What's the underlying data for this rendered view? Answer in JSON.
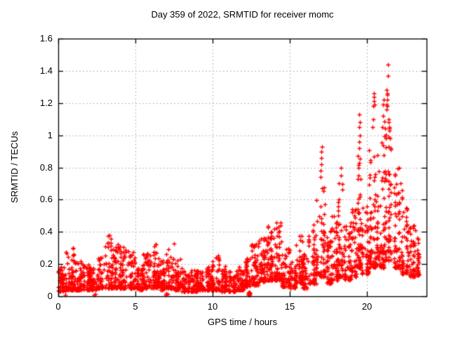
{
  "chart_data": {
    "type": "scatter",
    "title": "Day 359 of 2022, SRMTID for receiver momc",
    "xlabel": "GPS time / hours",
    "ylabel": "SRMTID / TECUs",
    "xlim": [
      0,
      23.86
    ],
    "ylim": [
      0,
      1.6
    ],
    "xtick_values": [
      0,
      5,
      10,
      15,
      20
    ],
    "xtick_labels": [
      "0",
      "5",
      "10",
      "15",
      "20"
    ],
    "ytick_values": [
      0,
      0.2,
      0.4,
      0.6,
      0.8,
      1.0,
      1.2,
      1.4,
      1.6
    ],
    "ytick_labels": [
      "0",
      "0.2",
      "0.4",
      "0.6",
      "0.8",
      "1",
      "1.2",
      "1.4",
      "1.6"
    ],
    "grid": true,
    "grid_color": "#b8b8b8",
    "marker": "plus",
    "marker_color": "#ff0000",
    "border_color": "#000000",
    "seed": 1234567,
    "series_name": "SRMTID",
    "bin_format": [
      "t_start_hours",
      "t_end_hours",
      "count",
      "y_min_TECUs",
      "y_max_TECUs",
      "skew_exponent"
    ],
    "density_bins": [
      [
        0.0,
        0.5,
        55,
        0.03,
        0.2,
        2.0
      ],
      [
        0.5,
        1.0,
        55,
        0.04,
        0.3,
        2.2
      ],
      [
        1.0,
        1.5,
        55,
        0.04,
        0.22,
        2.0
      ],
      [
        1.5,
        2.0,
        50,
        0.04,
        0.2,
        2.0
      ],
      [
        2.0,
        2.5,
        50,
        0.04,
        0.18,
        2.0
      ],
      [
        2.5,
        3.0,
        50,
        0.05,
        0.26,
        2.0
      ],
      [
        3.0,
        3.5,
        55,
        0.05,
        0.38,
        2.2
      ],
      [
        3.5,
        4.0,
        55,
        0.05,
        0.35,
        2.2
      ],
      [
        4.0,
        4.5,
        55,
        0.05,
        0.31,
        2.2
      ],
      [
        4.5,
        5.0,
        50,
        0.05,
        0.28,
        2.2
      ],
      [
        5.0,
        5.5,
        50,
        0.04,
        0.2,
        2.0
      ],
      [
        5.5,
        6.0,
        50,
        0.05,
        0.28,
        2.2
      ],
      [
        6.0,
        6.5,
        55,
        0.05,
        0.33,
        2.2
      ],
      [
        6.5,
        7.0,
        50,
        0.04,
        0.25,
        2.0
      ],
      [
        7.0,
        7.5,
        55,
        0.05,
        0.35,
        2.2
      ],
      [
        7.5,
        8.0,
        50,
        0.04,
        0.24,
        2.0
      ],
      [
        8.0,
        8.5,
        50,
        0.03,
        0.18,
        2.0
      ],
      [
        8.5,
        9.0,
        50,
        0.03,
        0.16,
        2.0
      ],
      [
        9.0,
        9.5,
        50,
        0.04,
        0.16,
        2.0
      ],
      [
        9.5,
        10.0,
        50,
        0.04,
        0.19,
        2.0
      ],
      [
        10.0,
        10.5,
        55,
        0.04,
        0.26,
        2.2
      ],
      [
        10.5,
        11.0,
        50,
        0.03,
        0.2,
        2.0
      ],
      [
        11.0,
        11.5,
        45,
        0.03,
        0.16,
        2.0
      ],
      [
        11.5,
        12.0,
        48,
        0.04,
        0.2,
        2.0
      ],
      [
        12.0,
        12.5,
        52,
        0.06,
        0.24,
        2.0
      ],
      [
        12.5,
        13.0,
        55,
        0.07,
        0.33,
        2.2
      ],
      [
        13.0,
        13.5,
        58,
        0.09,
        0.38,
        2.2
      ],
      [
        13.5,
        14.0,
        60,
        0.1,
        0.44,
        2.2
      ],
      [
        14.0,
        14.5,
        60,
        0.1,
        0.46,
        2.2
      ],
      [
        14.5,
        15.0,
        50,
        0.06,
        0.3,
        2.2
      ],
      [
        15.0,
        15.4,
        38,
        0.05,
        0.22,
        2.0
      ],
      [
        15.4,
        15.8,
        45,
        0.08,
        0.42,
        2.2
      ],
      [
        15.8,
        16.2,
        42,
        0.05,
        0.26,
        2.0
      ],
      [
        16.2,
        16.7,
        50,
        0.08,
        0.46,
        2.2
      ],
      [
        16.7,
        17.3,
        65,
        0.12,
        0.7,
        2.4
      ],
      [
        17.3,
        17.7,
        42,
        0.08,
        0.42,
        2.2
      ],
      [
        17.7,
        18.1,
        46,
        0.1,
        0.52,
        2.2
      ],
      [
        18.1,
        18.45,
        42,
        0.12,
        0.78,
        2.6
      ],
      [
        18.45,
        19.0,
        50,
        0.1,
        0.46,
        2.2
      ],
      [
        19.0,
        19.35,
        42,
        0.12,
        0.56,
        2.2
      ],
      [
        19.35,
        19.65,
        55,
        0.18,
        0.88,
        2.4
      ],
      [
        19.65,
        20.1,
        50,
        0.14,
        0.56,
        2.2
      ],
      [
        20.1,
        20.6,
        65,
        0.18,
        0.95,
        2.4
      ],
      [
        20.6,
        21.1,
        70,
        0.18,
        1.0,
        2.4
      ],
      [
        21.1,
        21.6,
        70,
        0.22,
        1.15,
        2.2
      ],
      [
        21.6,
        22.1,
        55,
        0.18,
        0.8,
        2.4
      ],
      [
        22.1,
        22.6,
        50,
        0.14,
        0.62,
        2.2
      ],
      [
        22.6,
        23.1,
        48,
        0.12,
        0.45,
        2.0
      ],
      [
        23.1,
        23.45,
        32,
        0.13,
        0.42,
        2.0
      ]
    ],
    "outlier_points": [
      [
        0.45,
        0.01
      ],
      [
        2.3,
        0.008
      ],
      [
        2.4,
        0.012
      ],
      [
        6.95,
        0.01
      ],
      [
        7.02,
        0.018
      ],
      [
        7.08,
        0.012
      ],
      [
        12.3,
        0.015
      ],
      [
        12.33,
        0.02
      ],
      [
        12.36,
        0.012
      ],
      [
        12.39,
        0.022
      ],
      [
        12.42,
        0.016
      ],
      [
        12.36,
        0.028
      ],
      [
        12.33,
        0.01
      ],
      [
        12.4,
        0.01
      ],
      [
        17.0,
        0.74
      ],
      [
        17.02,
        0.78
      ],
      [
        17.05,
        0.82
      ],
      [
        17.03,
        0.86
      ],
      [
        17.06,
        0.9
      ],
      [
        17.08,
        0.93
      ],
      [
        18.3,
        0.8
      ],
      [
        18.32,
        0.75
      ],
      [
        19.48,
        0.92
      ],
      [
        19.5,
        0.96
      ],
      [
        19.52,
        1.0
      ],
      [
        19.5,
        1.05
      ],
      [
        19.53,
        1.08
      ],
      [
        19.5,
        1.13
      ],
      [
        20.38,
        1.05
      ],
      [
        20.42,
        1.1
      ],
      [
        20.4,
        1.18
      ],
      [
        20.45,
        1.21
      ],
      [
        20.43,
        1.24
      ],
      [
        20.47,
        1.26
      ],
      [
        20.5,
        1.19
      ],
      [
        21.0,
        1.05
      ],
      [
        21.05,
        1.12
      ],
      [
        21.02,
        1.19
      ],
      [
        21.08,
        1.22
      ],
      [
        21.25,
        1.16
      ],
      [
        21.28,
        1.19
      ],
      [
        21.3,
        1.22
      ],
      [
        21.32,
        1.25
      ],
      [
        21.27,
        1.28
      ],
      [
        21.33,
        1.26
      ],
      [
        21.3,
        1.18
      ],
      [
        21.35,
        1.44
      ],
      [
        21.37,
        1.37
      ],
      [
        21.4,
        1.1
      ],
      [
        21.45,
        1.04
      ],
      [
        21.5,
        0.98
      ],
      [
        21.55,
        0.92
      ],
      [
        22.2,
        0.7
      ],
      [
        22.25,
        0.66
      ]
    ]
  }
}
